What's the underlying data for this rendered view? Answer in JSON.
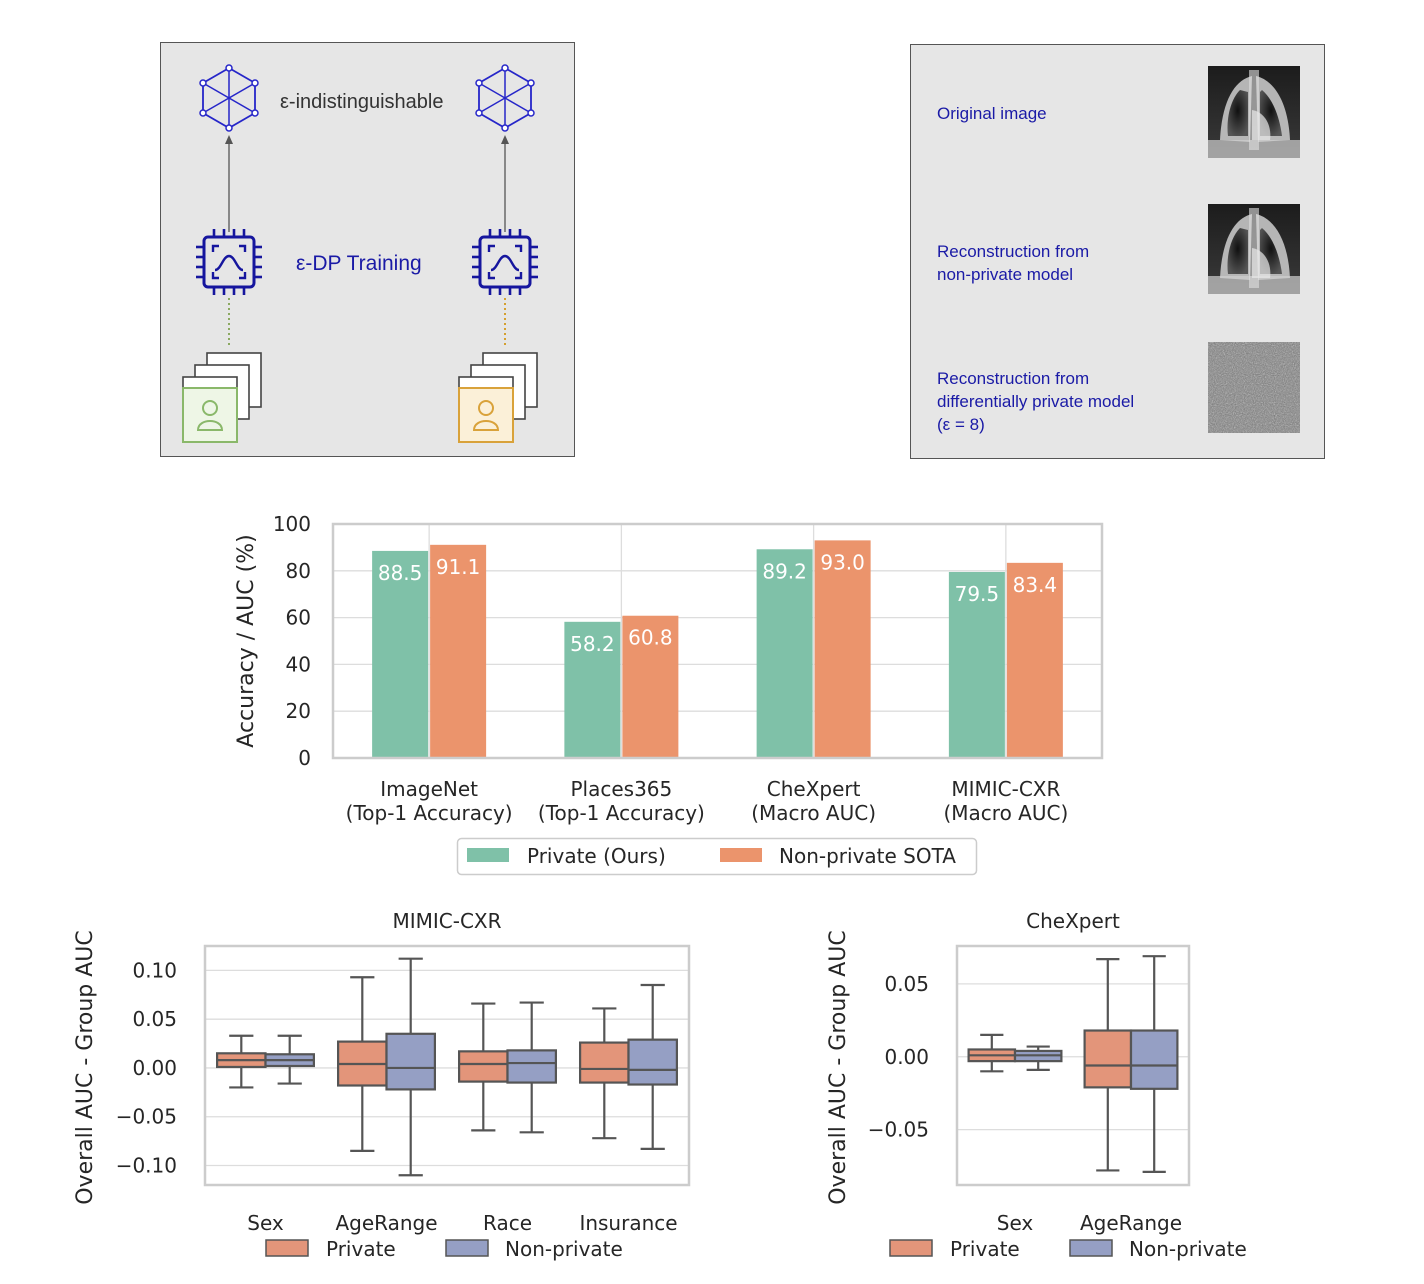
{
  "panel_a": {
    "eps_label": "ε-indistinguishable",
    "training_label": "ε-DP Training",
    "icons": [
      "graph-icon",
      "chip-icon",
      "stacked-images-icon",
      "person-icon"
    ]
  },
  "panel_b": {
    "original_label": "Original image",
    "nonprivate_label_1": "Reconstruction from",
    "nonprivate_label_2": "non-private model",
    "private_label_1": "Reconstruction from",
    "private_label_2": "differentially private model",
    "private_label_3": "(ε = 8)"
  },
  "colors": {
    "private": "#7fc1a8",
    "nonprivate": "#eb946c",
    "box_private": "#e3957a",
    "box_nonprivate": "#959fc4",
    "label_blue": "#1a1aa6"
  },
  "chart_data": [
    {
      "type": "bar",
      "ylabel": "Accuracy / AUC (%)",
      "ylim": [
        0,
        100
      ],
      "yticks": [
        0,
        20,
        40,
        60,
        80,
        100
      ],
      "categories": [
        [
          "ImageNet",
          "(Top-1 Accuracy)"
        ],
        [
          "Places365",
          "(Top-1 Accuracy)"
        ],
        [
          "CheXpert",
          "(Macro AUC)"
        ],
        [
          "MIMIC-CXR",
          "(Macro AUC)"
        ]
      ],
      "series": [
        {
          "name": "Private (Ours)",
          "values": [
            88.5,
            58.2,
            89.2,
            79.5
          ],
          "labels": [
            "88.5",
            "58.2",
            "89.2",
            "79.5"
          ]
        },
        {
          "name": "Non-private SOTA",
          "values": [
            91.1,
            60.8,
            93.0,
            83.4
          ],
          "labels": [
            "91.1",
            "60.8",
            "93.0",
            "83.4"
          ]
        }
      ],
      "legend": "bottom",
      "grid": true
    },
    {
      "type": "box",
      "title": "MIMIC-CXR",
      "ylabel": "Overall AUC - Group AUC",
      "ylim": [
        -0.12,
        0.125
      ],
      "yticks": [
        "0.10",
        "0.05",
        "0.00",
        "−0.05",
        "−0.10"
      ],
      "ytick_values": [
        0.1,
        0.05,
        0.0,
        -0.05,
        -0.1
      ],
      "categories": [
        "Sex",
        "AgeRange",
        "Race",
        "Insurance"
      ],
      "series": [
        {
          "name": "Private",
          "boxes": [
            {
              "whislo": -0.02,
              "q1": 0.001,
              "med": 0.008,
              "q3": 0.015,
              "whishi": 0.033
            },
            {
              "whislo": -0.085,
              "q1": -0.018,
              "med": 0.004,
              "q3": 0.027,
              "whishi": 0.093
            },
            {
              "whislo": -0.064,
              "q1": -0.014,
              "med": 0.004,
              "q3": 0.017,
              "whishi": 0.066
            },
            {
              "whislo": -0.072,
              "q1": -0.015,
              "med": -0.001,
              "q3": 0.026,
              "whishi": 0.061
            }
          ]
        },
        {
          "name": "Non-private",
          "boxes": [
            {
              "whislo": -0.016,
              "q1": 0.002,
              "med": 0.008,
              "q3": 0.014,
              "whishi": 0.033
            },
            {
              "whislo": -0.11,
              "q1": -0.022,
              "med": 0.0,
              "q3": 0.035,
              "whishi": 0.112
            },
            {
              "whislo": -0.066,
              "q1": -0.015,
              "med": 0.005,
              "q3": 0.018,
              "whishi": 0.067
            },
            {
              "whislo": -0.083,
              "q1": -0.017,
              "med": -0.002,
              "q3": 0.029,
              "whishi": 0.085
            }
          ]
        }
      ],
      "legend": "bottom",
      "grid": true
    },
    {
      "type": "box",
      "title": "CheXpert",
      "ylabel": "Overall AUC - Group AUC",
      "ylim": [
        -0.088,
        0.076
      ],
      "yticks": [
        "0.05",
        "0.00",
        "−0.05"
      ],
      "ytick_values": [
        0.05,
        0.0,
        -0.05
      ],
      "categories": [
        "Sex",
        "AgeRange"
      ],
      "series": [
        {
          "name": "Private",
          "boxes": [
            {
              "whislo": -0.01,
              "q1": -0.003,
              "med": 0.001,
              "q3": 0.005,
              "whishi": 0.015
            },
            {
              "whislo": -0.078,
              "q1": -0.021,
              "med": -0.006,
              "q3": 0.018,
              "whishi": 0.067
            }
          ]
        },
        {
          "name": "Non-private",
          "boxes": [
            {
              "whislo": -0.009,
              "q1": -0.003,
              "med": 0.001,
              "q3": 0.004,
              "whishi": 0.007
            },
            {
              "whislo": -0.079,
              "q1": -0.022,
              "med": -0.006,
              "q3": 0.018,
              "whishi": 0.069
            }
          ]
        }
      ],
      "legend": "bottom",
      "grid": true
    }
  ]
}
